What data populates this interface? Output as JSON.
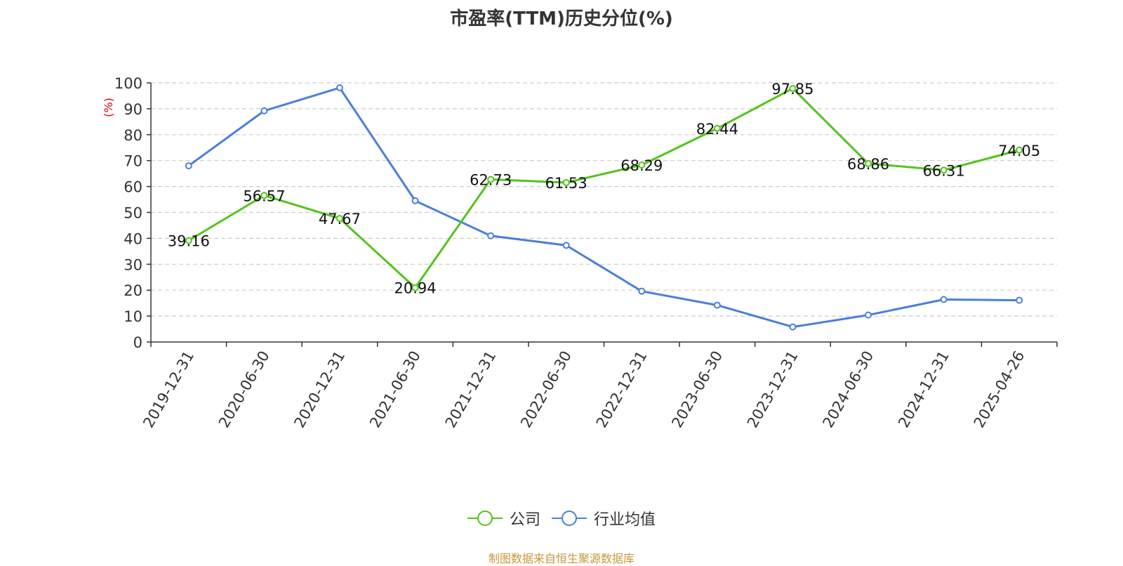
{
  "chart_data": {
    "type": "line",
    "title": "市盈率(TTM)历史分位(%)",
    "ylabel": "(%)",
    "xlabel": "",
    "ylim": [
      0,
      100
    ],
    "yticks": [
      0,
      10,
      20,
      30,
      40,
      50,
      60,
      70,
      80,
      90,
      100
    ],
    "grid": true,
    "legend_position": "bottom-center",
    "categories": [
      "2019-12-31",
      "2020-06-30",
      "2020-12-31",
      "2021-06-30",
      "2021-12-31",
      "2022-06-30",
      "2022-12-31",
      "2023-06-30",
      "2023-12-31",
      "2024-06-30",
      "2024-12-31",
      "2025-04-26"
    ],
    "series": [
      {
        "name": "公司",
        "color": "#52c41a",
        "show_labels": true,
        "values": [
          39.16,
          56.57,
          47.67,
          20.94,
          62.73,
          61.53,
          68.29,
          82.44,
          97.85,
          68.86,
          66.31,
          74.05
        ]
      },
      {
        "name": "行业均值",
        "color": "#4a7fdc",
        "show_labels": false,
        "values": [
          68.0,
          89.2,
          98.1,
          54.5,
          41.0,
          37.3,
          19.6,
          14.2,
          5.8,
          10.4,
          16.4,
          16.1
        ]
      }
    ]
  },
  "source": "制图数据来自恒生聚源数据库"
}
